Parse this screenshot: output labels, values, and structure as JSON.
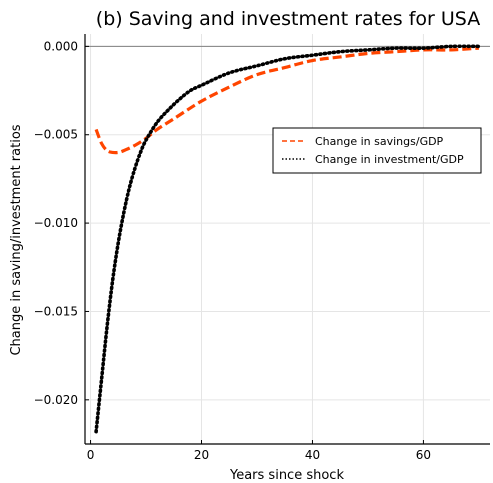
{
  "chart_data": {
    "type": "line",
    "title": "(b) Saving and investment rates for USA",
    "xlabel": "Years since shock",
    "ylabel": "Change in saving/investment ratios",
    "xlim": [
      -1,
      72
    ],
    "ylim": [
      -0.0225,
      0.0007
    ],
    "x_ticks": [
      0,
      20,
      40,
      60
    ],
    "x_tick_labels": [
      "0",
      "20",
      "40",
      "60"
    ],
    "y_ticks": [
      0.0,
      -0.005,
      -0.01,
      -0.015,
      -0.02
    ],
    "y_tick_labels": [
      "0.000",
      "−0.005",
      "−0.010",
      "−0.015",
      "−0.020"
    ],
    "grid": true,
    "legend_position": "right",
    "reference_line": 0,
    "colors": {
      "savings": "#ff4500",
      "investment": "#000000",
      "zero_line": "#808080",
      "grid": "#e5e5e5"
    },
    "series": [
      {
        "name": "Change in savings/GDP",
        "style": "dashed",
        "x": [
          1,
          2,
          3,
          4,
          5,
          6,
          8,
          10,
          12,
          15,
          20,
          25,
          30,
          35,
          40,
          45,
          50,
          55,
          60,
          65,
          70
        ],
        "y": [
          -0.0047,
          -0.0055,
          -0.0059,
          -0.006,
          -0.006,
          -0.0059,
          -0.0056,
          -0.0052,
          -0.0047,
          -0.0041,
          -0.0031,
          -0.0023,
          -0.0016,
          -0.0012,
          -0.0008,
          -0.0006,
          -0.0004,
          -0.0003,
          -0.0002,
          -0.0002,
          -0.0001
        ]
      },
      {
        "name": "Change in investment/GDP",
        "style": "dotted",
        "x": [
          1,
          2,
          3,
          4,
          5,
          6,
          7,
          8,
          9,
          10,
          12,
          14,
          16,
          18,
          20,
          25,
          30,
          35,
          40,
          45,
          50,
          55,
          60,
          65,
          70
        ],
        "y": [
          -0.0218,
          -0.0188,
          -0.0158,
          -0.0132,
          -0.0111,
          -0.0094,
          -0.008,
          -0.0069,
          -0.006,
          -0.0053,
          -0.0043,
          -0.0036,
          -0.003,
          -0.0025,
          -0.0022,
          -0.0015,
          -0.0011,
          -0.0007,
          -0.0005,
          -0.0003,
          -0.0002,
          -0.0001,
          -0.0001,
          0.0,
          0.0
        ]
      }
    ]
  }
}
